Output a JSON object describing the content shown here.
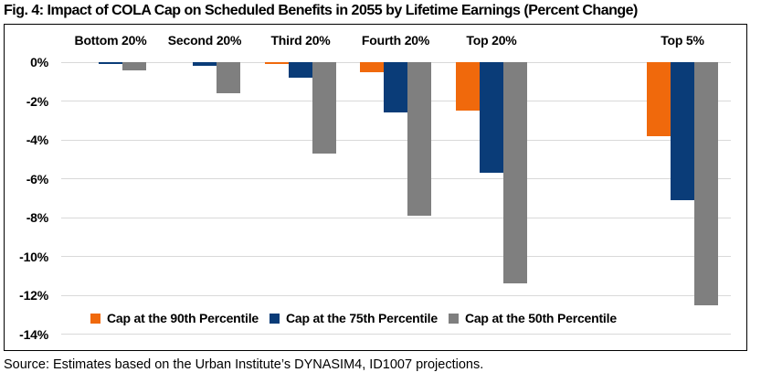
{
  "figure": {
    "title": "Fig. 4: Impact of COLA Cap on Scheduled Benefits in 2055 by Lifetime Earnings (Percent Change)",
    "source": "Source: Estimates based on the Urban Institute’s DYNASIM4, ID1007 projections."
  },
  "chart_data": {
    "type": "bar",
    "title": "Fig. 4: Impact of COLA Cap on Scheduled Benefits in 2055 by Lifetime Earnings (Percent Change)",
    "categories": [
      "Bottom 20%",
      "Second 20%",
      "Third 20%",
      "Fourth 20%",
      "Top 20%",
      "Top 5%"
    ],
    "series": [
      {
        "name": "Cap at the 90th Percentile",
        "color": "#F0690C",
        "values": [
          0,
          0,
          -0.1,
          -0.5,
          -2.5,
          -3.8
        ]
      },
      {
        "name": "Cap at the 75th Percentile",
        "color": "#0A3C78",
        "values": [
          -0.1,
          -0.2,
          -0.8,
          -2.6,
          -5.7,
          -7.1
        ]
      },
      {
        "name": "Cap at the 50th Percentile",
        "color": "#7F7F7F",
        "values": [
          -0.4,
          -1.6,
          -4.7,
          -7.9,
          -11.4,
          -12.5
        ]
      }
    ],
    "xlabel": "",
    "ylabel": "",
    "ylim": [
      -14,
      0
    ],
    "yticks": [
      "0%",
      "-2%",
      "-4%",
      "-6%",
      "-8%",
      "-10%",
      "-12%",
      "-14%"
    ],
    "grid": true,
    "legend_position": "bottom-inside"
  }
}
